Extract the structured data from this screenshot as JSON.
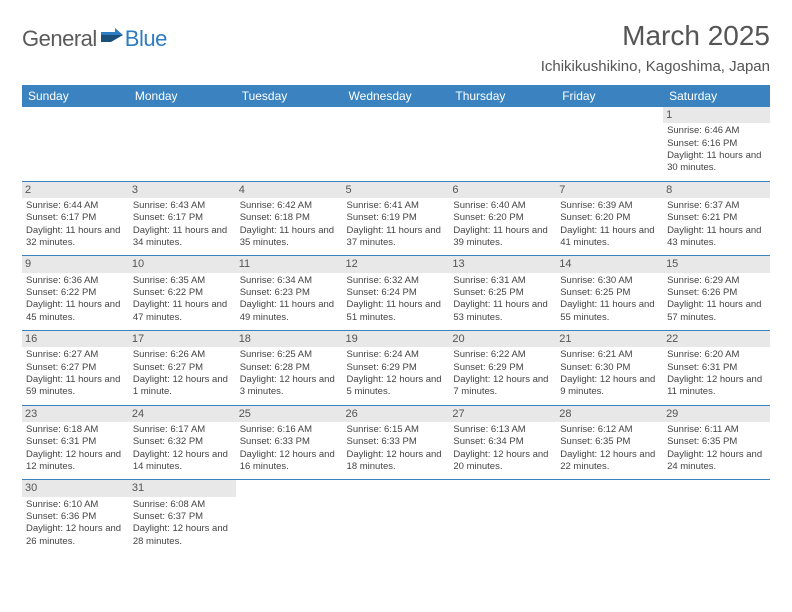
{
  "brand": {
    "name_a": "General",
    "name_b": "Blue"
  },
  "title": "March 2025",
  "location": "Ichikikushikino, Kagoshima, Japan",
  "colors": {
    "header_bg": "#3b83c0",
    "header_fg": "#ffffff",
    "daynum_bg": "#e8e8e8",
    "border": "#3b83c0",
    "text": "#444444",
    "title_color": "#555555"
  },
  "weekdays": [
    "Sunday",
    "Monday",
    "Tuesday",
    "Wednesday",
    "Thursday",
    "Friday",
    "Saturday"
  ],
  "weeks": [
    [
      {
        "empty": true
      },
      {
        "empty": true
      },
      {
        "empty": true
      },
      {
        "empty": true
      },
      {
        "empty": true
      },
      {
        "empty": true
      },
      {
        "day": "1",
        "sunrise": "Sunrise: 6:46 AM",
        "sunset": "Sunset: 6:16 PM",
        "daylight": "Daylight: 11 hours and 30 minutes."
      }
    ],
    [
      {
        "day": "2",
        "sunrise": "Sunrise: 6:44 AM",
        "sunset": "Sunset: 6:17 PM",
        "daylight": "Daylight: 11 hours and 32 minutes."
      },
      {
        "day": "3",
        "sunrise": "Sunrise: 6:43 AM",
        "sunset": "Sunset: 6:17 PM",
        "daylight": "Daylight: 11 hours and 34 minutes."
      },
      {
        "day": "4",
        "sunrise": "Sunrise: 6:42 AM",
        "sunset": "Sunset: 6:18 PM",
        "daylight": "Daylight: 11 hours and 35 minutes."
      },
      {
        "day": "5",
        "sunrise": "Sunrise: 6:41 AM",
        "sunset": "Sunset: 6:19 PM",
        "daylight": "Daylight: 11 hours and 37 minutes."
      },
      {
        "day": "6",
        "sunrise": "Sunrise: 6:40 AM",
        "sunset": "Sunset: 6:20 PM",
        "daylight": "Daylight: 11 hours and 39 minutes."
      },
      {
        "day": "7",
        "sunrise": "Sunrise: 6:39 AM",
        "sunset": "Sunset: 6:20 PM",
        "daylight": "Daylight: 11 hours and 41 minutes."
      },
      {
        "day": "8",
        "sunrise": "Sunrise: 6:37 AM",
        "sunset": "Sunset: 6:21 PM",
        "daylight": "Daylight: 11 hours and 43 minutes."
      }
    ],
    [
      {
        "day": "9",
        "sunrise": "Sunrise: 6:36 AM",
        "sunset": "Sunset: 6:22 PM",
        "daylight": "Daylight: 11 hours and 45 minutes."
      },
      {
        "day": "10",
        "sunrise": "Sunrise: 6:35 AM",
        "sunset": "Sunset: 6:22 PM",
        "daylight": "Daylight: 11 hours and 47 minutes."
      },
      {
        "day": "11",
        "sunrise": "Sunrise: 6:34 AM",
        "sunset": "Sunset: 6:23 PM",
        "daylight": "Daylight: 11 hours and 49 minutes."
      },
      {
        "day": "12",
        "sunrise": "Sunrise: 6:32 AM",
        "sunset": "Sunset: 6:24 PM",
        "daylight": "Daylight: 11 hours and 51 minutes."
      },
      {
        "day": "13",
        "sunrise": "Sunrise: 6:31 AM",
        "sunset": "Sunset: 6:25 PM",
        "daylight": "Daylight: 11 hours and 53 minutes."
      },
      {
        "day": "14",
        "sunrise": "Sunrise: 6:30 AM",
        "sunset": "Sunset: 6:25 PM",
        "daylight": "Daylight: 11 hours and 55 minutes."
      },
      {
        "day": "15",
        "sunrise": "Sunrise: 6:29 AM",
        "sunset": "Sunset: 6:26 PM",
        "daylight": "Daylight: 11 hours and 57 minutes."
      }
    ],
    [
      {
        "day": "16",
        "sunrise": "Sunrise: 6:27 AM",
        "sunset": "Sunset: 6:27 PM",
        "daylight": "Daylight: 11 hours and 59 minutes."
      },
      {
        "day": "17",
        "sunrise": "Sunrise: 6:26 AM",
        "sunset": "Sunset: 6:27 PM",
        "daylight": "Daylight: 12 hours and 1 minute."
      },
      {
        "day": "18",
        "sunrise": "Sunrise: 6:25 AM",
        "sunset": "Sunset: 6:28 PM",
        "daylight": "Daylight: 12 hours and 3 minutes."
      },
      {
        "day": "19",
        "sunrise": "Sunrise: 6:24 AM",
        "sunset": "Sunset: 6:29 PM",
        "daylight": "Daylight: 12 hours and 5 minutes."
      },
      {
        "day": "20",
        "sunrise": "Sunrise: 6:22 AM",
        "sunset": "Sunset: 6:29 PM",
        "daylight": "Daylight: 12 hours and 7 minutes."
      },
      {
        "day": "21",
        "sunrise": "Sunrise: 6:21 AM",
        "sunset": "Sunset: 6:30 PM",
        "daylight": "Daylight: 12 hours and 9 minutes."
      },
      {
        "day": "22",
        "sunrise": "Sunrise: 6:20 AM",
        "sunset": "Sunset: 6:31 PM",
        "daylight": "Daylight: 12 hours and 11 minutes."
      }
    ],
    [
      {
        "day": "23",
        "sunrise": "Sunrise: 6:18 AM",
        "sunset": "Sunset: 6:31 PM",
        "daylight": "Daylight: 12 hours and 12 minutes."
      },
      {
        "day": "24",
        "sunrise": "Sunrise: 6:17 AM",
        "sunset": "Sunset: 6:32 PM",
        "daylight": "Daylight: 12 hours and 14 minutes."
      },
      {
        "day": "25",
        "sunrise": "Sunrise: 6:16 AM",
        "sunset": "Sunset: 6:33 PM",
        "daylight": "Daylight: 12 hours and 16 minutes."
      },
      {
        "day": "26",
        "sunrise": "Sunrise: 6:15 AM",
        "sunset": "Sunset: 6:33 PM",
        "daylight": "Daylight: 12 hours and 18 minutes."
      },
      {
        "day": "27",
        "sunrise": "Sunrise: 6:13 AM",
        "sunset": "Sunset: 6:34 PM",
        "daylight": "Daylight: 12 hours and 20 minutes."
      },
      {
        "day": "28",
        "sunrise": "Sunrise: 6:12 AM",
        "sunset": "Sunset: 6:35 PM",
        "daylight": "Daylight: 12 hours and 22 minutes."
      },
      {
        "day": "29",
        "sunrise": "Sunrise: 6:11 AM",
        "sunset": "Sunset: 6:35 PM",
        "daylight": "Daylight: 12 hours and 24 minutes."
      }
    ],
    [
      {
        "day": "30",
        "sunrise": "Sunrise: 6:10 AM",
        "sunset": "Sunset: 6:36 PM",
        "daylight": "Daylight: 12 hours and 26 minutes."
      },
      {
        "day": "31",
        "sunrise": "Sunrise: 6:08 AM",
        "sunset": "Sunset: 6:37 PM",
        "daylight": "Daylight: 12 hours and 28 minutes."
      },
      {
        "empty": true
      },
      {
        "empty": true
      },
      {
        "empty": true
      },
      {
        "empty": true
      },
      {
        "empty": true
      }
    ]
  ]
}
